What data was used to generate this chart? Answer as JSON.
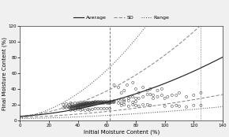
{
  "title": "",
  "xlabel": "Initial Moisture Content (%)",
  "ylabel": "Final Moisture Content (%)",
  "xlim": [
    0,
    140
  ],
  "ylim": [
    0,
    120
  ],
  "xticks": [
    0,
    20,
    40,
    60,
    80,
    100,
    120,
    140
  ],
  "yticks": [
    0,
    20,
    40,
    60,
    80,
    100,
    120
  ],
  "vline_x": 62,
  "vline2_x": 125,
  "scatter_points": [
    [
      30,
      16
    ],
    [
      31,
      17
    ],
    [
      32,
      16
    ],
    [
      33,
      18
    ],
    [
      34,
      17
    ],
    [
      34,
      16
    ],
    [
      35,
      18
    ],
    [
      35,
      17
    ],
    [
      35,
      16
    ],
    [
      36,
      18
    ],
    [
      36,
      17
    ],
    [
      36,
      16
    ],
    [
      37,
      18
    ],
    [
      37,
      17
    ],
    [
      38,
      19
    ],
    [
      38,
      18
    ],
    [
      38,
      17
    ],
    [
      38,
      16
    ],
    [
      39,
      19
    ],
    [
      39,
      18
    ],
    [
      39,
      17
    ],
    [
      40,
      20
    ],
    [
      40,
      19
    ],
    [
      40,
      18
    ],
    [
      40,
      17
    ],
    [
      40,
      16
    ],
    [
      41,
      20
    ],
    [
      41,
      19
    ],
    [
      41,
      18
    ],
    [
      41,
      17
    ],
    [
      42,
      21
    ],
    [
      42,
      20
    ],
    [
      42,
      19
    ],
    [
      42,
      18
    ],
    [
      42,
      17
    ],
    [
      43,
      21
    ],
    [
      43,
      20
    ],
    [
      43,
      19
    ],
    [
      43,
      18
    ],
    [
      44,
      21
    ],
    [
      44,
      20
    ],
    [
      44,
      19
    ],
    [
      44,
      18
    ],
    [
      45,
      22
    ],
    [
      45,
      21
    ],
    [
      45,
      20
    ],
    [
      45,
      19
    ],
    [
      45,
      18
    ],
    [
      46,
      22
    ],
    [
      46,
      21
    ],
    [
      46,
      20
    ],
    [
      46,
      19
    ],
    [
      47,
      22
    ],
    [
      47,
      21
    ],
    [
      47,
      20
    ],
    [
      47,
      19
    ],
    [
      48,
      22
    ],
    [
      48,
      21
    ],
    [
      48,
      20
    ],
    [
      48,
      19
    ],
    [
      49,
      22
    ],
    [
      49,
      21
    ],
    [
      49,
      20
    ],
    [
      50,
      23
    ],
    [
      50,
      22
    ],
    [
      50,
      21
    ],
    [
      50,
      20
    ],
    [
      51,
      23
    ],
    [
      51,
      22
    ],
    [
      51,
      21
    ],
    [
      52,
      23
    ],
    [
      52,
      22
    ],
    [
      52,
      21
    ],
    [
      53,
      23
    ],
    [
      53,
      22
    ],
    [
      54,
      23
    ],
    [
      54,
      22
    ],
    [
      55,
      23
    ],
    [
      55,
      22
    ],
    [
      56,
      23
    ],
    [
      56,
      22
    ],
    [
      57,
      23
    ],
    [
      57,
      22
    ],
    [
      58,
      23
    ],
    [
      58,
      22
    ],
    [
      59,
      23
    ],
    [
      60,
      23
    ],
    [
      60,
      22
    ],
    [
      61,
      23
    ],
    [
      61,
      22
    ],
    [
      62,
      23
    ],
    [
      62,
      22
    ],
    [
      63,
      24
    ],
    [
      63,
      23
    ],
    [
      64,
      23
    ],
    [
      65,
      24
    ],
    [
      65,
      23
    ],
    [
      35,
      13
    ],
    [
      37,
      14
    ],
    [
      38,
      13
    ],
    [
      40,
      14
    ],
    [
      42,
      13
    ],
    [
      43,
      14
    ],
    [
      45,
      13
    ],
    [
      47,
      14
    ],
    [
      48,
      13
    ],
    [
      50,
      14
    ],
    [
      52,
      15
    ],
    [
      54,
      15
    ],
    [
      56,
      15
    ],
    [
      58,
      15
    ],
    [
      60,
      15
    ],
    [
      62,
      15
    ],
    [
      30,
      20
    ],
    [
      32,
      21
    ],
    [
      34,
      20
    ],
    [
      35,
      22
    ],
    [
      36,
      21
    ],
    [
      38,
      22
    ],
    [
      40,
      22
    ],
    [
      42,
      23
    ],
    [
      44,
      22
    ],
    [
      46,
      23
    ],
    [
      48,
      23
    ],
    [
      50,
      23
    ],
    [
      52,
      24
    ],
    [
      54,
      24
    ],
    [
      56,
      24
    ],
    [
      58,
      24
    ],
    [
      60,
      24
    ],
    [
      62,
      24
    ],
    [
      65,
      45
    ],
    [
      68,
      42
    ],
    [
      70,
      35
    ],
    [
      72,
      38
    ],
    [
      74,
      45
    ],
    [
      76,
      30
    ],
    [
      78,
      48
    ],
    [
      80,
      40
    ],
    [
      82,
      35
    ],
    [
      85,
      42
    ],
    [
      88,
      38
    ],
    [
      90,
      40
    ],
    [
      92,
      32
    ],
    [
      95,
      38
    ],
    [
      98,
      40
    ],
    [
      68,
      26
    ],
    [
      70,
      27
    ],
    [
      72,
      26
    ],
    [
      75,
      28
    ],
    [
      78,
      30
    ],
    [
      80,
      28
    ],
    [
      82,
      28
    ],
    [
      85,
      30
    ],
    [
      88,
      33
    ],
    [
      90,
      33
    ],
    [
      92,
      28
    ],
    [
      95,
      30
    ],
    [
      98,
      32
    ],
    [
      100,
      28
    ],
    [
      102,
      30
    ],
    [
      105,
      32
    ],
    [
      108,
      32
    ],
    [
      110,
      35
    ],
    [
      115,
      30
    ],
    [
      120,
      32
    ],
    [
      125,
      35
    ],
    [
      100,
      18
    ],
    [
      105,
      18
    ],
    [
      108,
      19
    ],
    [
      110,
      18
    ],
    [
      115,
      17
    ],
    [
      120,
      19
    ],
    [
      125,
      19
    ],
    [
      70,
      19
    ],
    [
      72,
      20
    ],
    [
      75,
      18
    ],
    [
      78,
      20
    ],
    [
      80,
      19
    ],
    [
      82,
      18
    ],
    [
      85,
      20
    ],
    [
      88,
      20
    ],
    [
      90,
      19
    ],
    [
      65,
      25
    ],
    [
      68,
      22
    ],
    [
      70,
      22
    ],
    [
      72,
      24
    ],
    [
      75,
      25
    ],
    [
      78,
      23
    ],
    [
      80,
      24
    ]
  ],
  "avg_coeffs": [
    0.003,
    0.12,
    5.0
  ],
  "sd_upper_coeffs": [
    0.006,
    0.18,
    5.0
  ],
  "sd_lower_coeffs": [
    0.001,
    0.07,
    3.5
  ],
  "range_upper_coeffs": [
    0.012,
    0.3,
    3.0
  ],
  "range_lower_coeffs": [
    0.0005,
    0.04,
    2.0
  ],
  "avg_color": "#222222",
  "sd_color": "#888888",
  "range_color": "#555555",
  "scatter_color": "none",
  "scatter_edge_color": "#333333",
  "background_color": "#f0f0f0"
}
